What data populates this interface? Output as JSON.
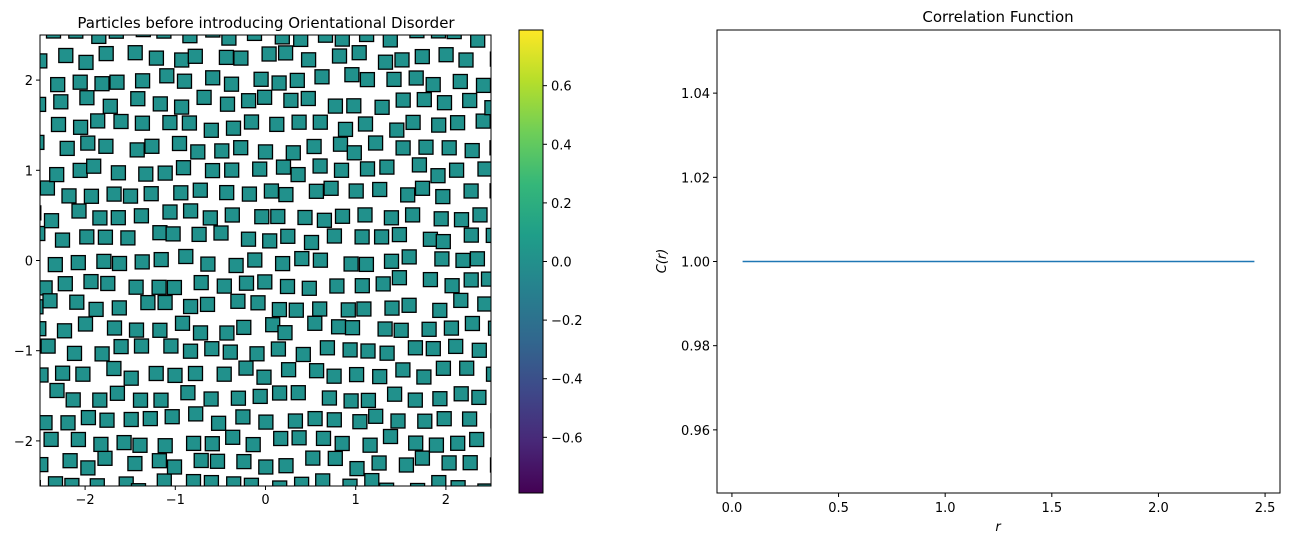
{
  "figure": {
    "background": "#ffffff"
  },
  "chart_data": [
    {
      "type": "scatter",
      "title": "Particles before introducing Orientational Disorder",
      "xlabel": "",
      "ylabel": "",
      "xlim": [
        -2.5,
        2.5
      ],
      "ylim": [
        -2.5,
        2.5
      ],
      "xticks": [
        -2,
        -1,
        0,
        1,
        2
      ],
      "yticks": [
        -2,
        -1,
        0,
        1,
        2
      ],
      "xtick_labels": [
        "−2",
        "−1",
        "0",
        "1",
        "2"
      ],
      "ytick_labels": [
        "−2",
        "−1",
        "0",
        "1",
        "2"
      ],
      "grid": false,
      "marker": "square",
      "marker_facecolor": "#21918c",
      "marker_edgecolor": "#000000",
      "orientation_values": "all 0",
      "lattice_spacing": 0.25,
      "lattice_jitter": 0.06,
      "colorbar": {
        "colormap": "viridis",
        "range": [
          -0.79,
          0.79
        ],
        "ticks": [
          -0.6,
          -0.4,
          -0.2,
          0.0,
          0.2,
          0.4,
          0.6
        ],
        "tick_labels": [
          "−0.6",
          "−0.4",
          "−0.2",
          "0.0",
          "0.2",
          "0.4",
          "0.6"
        ],
        "colors": [
          "#440154",
          "#482878",
          "#3e4989",
          "#31688e",
          "#26828e",
          "#1f9e89",
          "#35b779",
          "#6ece58",
          "#b5de2b",
          "#fde725"
        ]
      }
    },
    {
      "type": "line",
      "title": "Correlation Function",
      "xlabel": "r",
      "ylabel": "C(r)",
      "xlim": [
        -0.07,
        2.57
      ],
      "ylim": [
        0.945,
        1.055
      ],
      "xticks": [
        0.0,
        0.5,
        1.0,
        1.5,
        2.0,
        2.5
      ],
      "yticks": [
        0.96,
        0.98,
        1.0,
        1.02,
        1.04
      ],
      "xtick_labels": [
        "0.0",
        "0.5",
        "1.0",
        "1.5",
        "2.0",
        "2.5"
      ],
      "ytick_labels": [
        "0.96",
        "0.98",
        "1.00",
        "1.02",
        "1.04"
      ],
      "grid": false,
      "series": [
        {
          "color": "#1f77b4",
          "x": [
            0.05,
            2.45
          ],
          "y": [
            1.0,
            1.0
          ]
        }
      ]
    }
  ]
}
